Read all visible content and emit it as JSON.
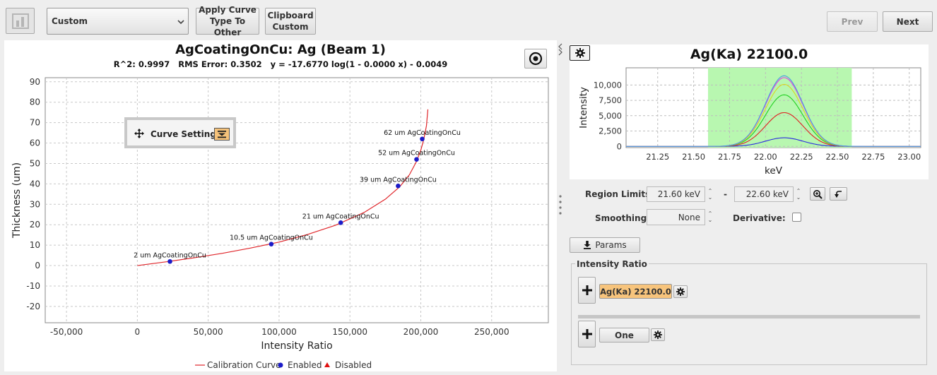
{
  "toolbar": {
    "curve_type_value": "Custom",
    "apply_curve_label_1": "Apply Curve",
    "apply_curve_label_2": "Type To Other",
    "clipboard_label_1": "Clipboard",
    "clipboard_label_2": "Custom",
    "prev_label": "Prev",
    "next_label": "Next"
  },
  "left_chart": {
    "title": "AgCoatingOnCu: Ag (Beam 1)",
    "stats": "R^2: 0.9997   RMS Error: 0.3502   y = -17.6770 log(1 - 0.0000 x) - 0.0049",
    "curve_settings_label": "Curve Settings",
    "legend": {
      "calibration_curve": "Calibration Curve",
      "enabled": "Enabled",
      "disabled": "Disabled"
    },
    "colors": {
      "curve": "#e0262b",
      "enabled": "#1b1bc8",
      "disabled": "#e01010"
    }
  },
  "right_chart": {
    "title": "Ag(Ka) 22100.0"
  },
  "region": {
    "label": "Region Limits:",
    "low": "21.60 keV",
    "dash": "-",
    "high": "22.60 keV"
  },
  "smoothing": {
    "label": "Smoothing:",
    "value": "None"
  },
  "derivative": {
    "label": "Derivative:",
    "checked": false
  },
  "params_label": "Params",
  "intensity_ratio": {
    "title": "Intensity Ratio",
    "numerator": "Ag(Ka) 22100.0",
    "denominator": "One"
  },
  "chart_data": [
    {
      "type": "scatter",
      "title": "AgCoatingOnCu: Ag (Beam 1)",
      "xlabel": "Intensity Ratio",
      "ylabel": "Thickness (um)",
      "xlim": [
        -65000,
        290000
      ],
      "ylim": [
        -28,
        92
      ],
      "xticks": [
        "-50,000",
        "0",
        "50,000",
        "100,000",
        "150,000",
        "200,000",
        "250,000"
      ],
      "xtick_values": [
        -50000,
        0,
        50000,
        100000,
        150000,
        200000,
        250000
      ],
      "yticks": [
        -20,
        -10,
        0,
        10,
        20,
        30,
        40,
        50,
        60,
        70,
        80,
        90
      ],
      "grid": true,
      "legend_position": "bottom",
      "curve": {
        "name": "Calibration Curve",
        "x": [
          0,
          20000,
          40000,
          60000,
          80000,
          100000,
          120000,
          140000,
          160000,
          175000,
          185000,
          192000,
          197000,
          200000,
          202000,
          204000,
          205000
        ],
        "y": [
          0,
          1.8,
          3.8,
          6.0,
          8.6,
          11.5,
          15.2,
          19.8,
          26.0,
          32.5,
          38.5,
          44.5,
          51.0,
          56.5,
          61.5,
          68.5,
          76.5
        ]
      },
      "points": [
        {
          "label": "2 um AgCoatingOnCu",
          "x": 23000,
          "y": 2.0
        },
        {
          "label": "10.5 um AgCoatingOnCu",
          "x": 94500,
          "y": 10.5
        },
        {
          "label": "21 um AgCoatingOnCu",
          "x": 143500,
          "y": 21.0
        },
        {
          "label": "39 um AgCoatingOnCu",
          "x": 184000,
          "y": 39.0
        },
        {
          "label": "52 um AgCoatingOnCu",
          "x": 197000,
          "y": 52.0
        },
        {
          "label": "62 um AgCoatingOnCu",
          "x": 201000,
          "y": 62.0
        }
      ]
    },
    {
      "type": "line",
      "title": "Ag(Ka) 22100.0",
      "xlabel": "keV",
      "ylabel": "Intensity",
      "xlim": [
        21.03,
        23.08
      ],
      "ylim": [
        -200,
        12800
      ],
      "xticks": [
        "21.25",
        "21.50",
        "21.75",
        "22.00",
        "22.25",
        "22.50",
        "22.75",
        "23.00"
      ],
      "xtick_values": [
        21.25,
        21.5,
        21.75,
        22.0,
        22.25,
        22.5,
        22.75,
        23.0
      ],
      "yticks": [
        "0",
        "2,500",
        "5,000",
        "7,500",
        "10,000"
      ],
      "ytick_values": [
        0,
        2500,
        5000,
        7500,
        10000
      ],
      "grid": true,
      "region": [
        21.6,
        22.6
      ],
      "series": [
        {
          "color": "#2a2ae0",
          "peak": 1400
        },
        {
          "color": "#e02020",
          "peak": 5500
        },
        {
          "color": "#20d020",
          "peak": 8400
        },
        {
          "color": "#d8d820",
          "peak": 10100
        },
        {
          "color": "#e040e0",
          "peak": 11200
        },
        {
          "color": "#4aa0e0",
          "peak": 11500
        }
      ]
    }
  ]
}
